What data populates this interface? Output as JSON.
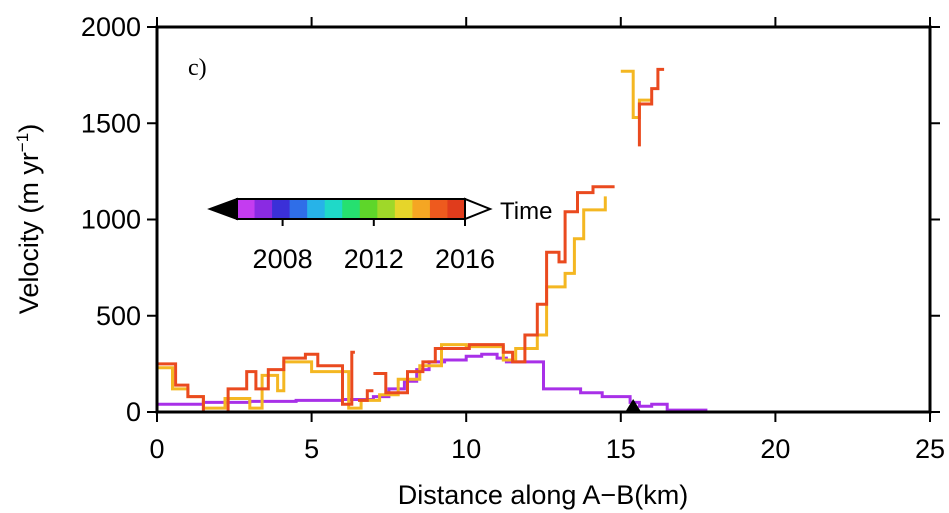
{
  "chart_data": {
    "type": "line",
    "panel_label": "c)",
    "xlabel": "Distance along A−B(km)",
    "ylabel_main": "Velocity (m yr",
    "ylabel_sup": "−1",
    "ylabel_close": ")",
    "xlim": [
      0,
      25
    ],
    "ylim": [
      0,
      2000
    ],
    "x_ticks": [
      0,
      5,
      10,
      15,
      20,
      25
    ],
    "x_tick_labels": [
      "0",
      "5",
      "10",
      "15",
      "20",
      "25"
    ],
    "y_ticks": [
      0,
      500,
      1000,
      1500,
      2000
    ],
    "y_tick_labels": [
      "0",
      "500",
      "1000",
      "1500",
      "2000"
    ],
    "grid": false,
    "colorbar": {
      "label": "Time",
      "tick_labels": [
        "2008",
        "2012",
        "2016"
      ],
      "tick_values": [
        2008,
        2012,
        2016
      ],
      "range": [
        2006,
        2016
      ],
      "colors": [
        "#c43cf0",
        "#8a2be2",
        "#3b30d8",
        "#2f6ee8",
        "#27b3e8",
        "#1fd9c8",
        "#26e070",
        "#5ed62a",
        "#9fd829",
        "#e6d52a",
        "#f5a623",
        "#ee5a1e",
        "#e03c1c"
      ],
      "low_end_color": "#000000",
      "high_end_color": "#ffffff"
    },
    "marker": {
      "x": 15.4,
      "y": 0,
      "symbol": "triangle",
      "color": "#000000"
    },
    "series": [
      {
        "color": "#a830e8",
        "segments": [
          [
            [
              0,
              40
            ],
            [
              1.5,
              40
            ],
            [
              1.5,
              50
            ],
            [
              3,
              50
            ],
            [
              3,
              55
            ],
            [
              4.5,
              55
            ],
            [
              4.5,
              60
            ],
            [
              6,
              60
            ],
            [
              6,
              65
            ],
            [
              7,
              65
            ],
            [
              7,
              80
            ],
            [
              7.5,
              80
            ],
            [
              7.5,
              120
            ],
            [
              8,
              120
            ],
            [
              8,
              160
            ],
            [
              8.4,
              160
            ],
            [
              8.4,
              220
            ],
            [
              8.8,
              220
            ],
            [
              8.8,
              260
            ],
            [
              9.3,
              260
            ],
            [
              9.3,
              270
            ],
            [
              10,
              270
            ],
            [
              10,
              290
            ],
            [
              10.5,
              290
            ],
            [
              10.5,
              300
            ],
            [
              11,
              300
            ],
            [
              11,
              280
            ],
            [
              11.3,
              280
            ],
            [
              11.3,
              260
            ],
            [
              12.5,
              260
            ],
            [
              12.5,
              120
            ],
            [
              13.7,
              120
            ],
            [
              13.7,
              100
            ],
            [
              14.4,
              100
            ],
            [
              14.4,
              80
            ],
            [
              15.3,
              80
            ],
            [
              15.3,
              50
            ],
            [
              15.6,
              50
            ],
            [
              15.6,
              30
            ],
            [
              16,
              30
            ],
            [
              16,
              40
            ],
            [
              16.5,
              40
            ],
            [
              16.5,
              10
            ],
            [
              17.8,
              10
            ]
          ]
        ]
      },
      {
        "color": "#f4b722",
        "segments": [
          [
            [
              0,
              230
            ],
            [
              0.5,
              230
            ],
            [
              0.5,
              120
            ],
            [
              1,
              120
            ],
            [
              1,
              80
            ],
            [
              1.5,
              80
            ],
            [
              1.5,
              20
            ],
            [
              2.2,
              20
            ],
            [
              2.2,
              70
            ],
            [
              3,
              70
            ],
            [
              3,
              20
            ],
            [
              3.4,
              20
            ],
            [
              3.4,
              190
            ],
            [
              3.9,
              190
            ],
            [
              3.9,
              110
            ],
            [
              4.1,
              110
            ],
            [
              4.1,
              260
            ],
            [
              5,
              260
            ],
            [
              5,
              210
            ],
            [
              6.2,
              210
            ],
            [
              6.2,
              20
            ],
            [
              6.6,
              20
            ],
            [
              6.6,
              60
            ],
            [
              7.2,
              60
            ],
            [
              7.2,
              90
            ],
            [
              7.8,
              90
            ],
            [
              7.8,
              170
            ],
            [
              8.5,
              170
            ],
            [
              8.5,
              240
            ],
            [
              9.2,
              240
            ],
            [
              9.2,
              350
            ],
            [
              10,
              350
            ],
            [
              10,
              340
            ],
            [
              11.2,
              340
            ],
            [
              11.2,
              270
            ],
            [
              11.6,
              270
            ],
            [
              11.6,
              330
            ],
            [
              12.3,
              330
            ],
            [
              12.3,
              400
            ],
            [
              12.6,
              400
            ],
            [
              12.6,
              650
            ],
            [
              13.2,
              650
            ],
            [
              13.2,
              720
            ],
            [
              13.5,
              720
            ],
            [
              13.5,
              900
            ],
            [
              13.8,
              900
            ],
            [
              13.8,
              1050
            ],
            [
              14.5,
              1050
            ],
            [
              14.5,
              1120
            ]
          ],
          [
            [
              15,
              1770
            ],
            [
              15.4,
              1770
            ],
            [
              15.4,
              1530
            ],
            [
              15.6,
              1530
            ],
            [
              15.6,
              1620
            ],
            [
              16,
              1620
            ]
          ]
        ]
      },
      {
        "color": "#ea4a1f",
        "segments": [
          [
            [
              0,
              250
            ],
            [
              0.6,
              250
            ],
            [
              0.6,
              140
            ],
            [
              1,
              140
            ],
            [
              1,
              80
            ],
            [
              1.5,
              80
            ],
            [
              1.5,
              0
            ],
            [
              2.3,
              0
            ],
            [
              2.3,
              120
            ],
            [
              2.9,
              120
            ],
            [
              2.9,
              210
            ],
            [
              3.2,
              210
            ],
            [
              3.2,
              120
            ],
            [
              3.6,
              120
            ],
            [
              3.6,
              220
            ],
            [
              4.1,
              220
            ],
            [
              4.1,
              280
            ],
            [
              4.8,
              280
            ],
            [
              4.8,
              300
            ],
            [
              5.2,
              300
            ],
            [
              5.2,
              240
            ],
            [
              6,
              240
            ],
            [
              6,
              40
            ],
            [
              6.3,
              40
            ],
            [
              6.3,
              310
            ],
            [
              6.4,
              310
            ]
          ],
          [
            [
              6.5,
              60
            ],
            [
              6.8,
              60
            ],
            [
              6.8,
              110
            ],
            [
              7,
              110
            ]
          ],
          [
            [
              7,
              200
            ],
            [
              7.4,
              200
            ],
            [
              7.4,
              100
            ],
            [
              8.1,
              100
            ],
            [
              8.1,
              210
            ],
            [
              8.6,
              210
            ],
            [
              8.6,
              260
            ],
            [
              9,
              260
            ],
            [
              9,
              330
            ],
            [
              10.1,
              330
            ],
            [
              10.1,
              350
            ],
            [
              11.2,
              350
            ],
            [
              11.2,
              310
            ],
            [
              11.5,
              310
            ],
            [
              11.5,
              260
            ],
            [
              11.9,
              260
            ],
            [
              11.9,
              400
            ],
            [
              12.3,
              400
            ],
            [
              12.3,
              560
            ],
            [
              12.6,
              560
            ],
            [
              12.6,
              830
            ],
            [
              13,
              830
            ],
            [
              13,
              780
            ],
            [
              13.2,
              780
            ],
            [
              13.2,
              1040
            ],
            [
              13.6,
              1040
            ],
            [
              13.6,
              1140
            ],
            [
              14.1,
              1140
            ],
            [
              14.1,
              1170
            ],
            [
              14.8,
              1170
            ]
          ],
          [
            [
              15.6,
              1380
            ],
            [
              15.6,
              1600
            ],
            [
              16,
              1600
            ],
            [
              16,
              1680
            ],
            [
              16.2,
              1680
            ],
            [
              16.2,
              1780
            ],
            [
              16.4,
              1780
            ]
          ]
        ]
      }
    ]
  }
}
